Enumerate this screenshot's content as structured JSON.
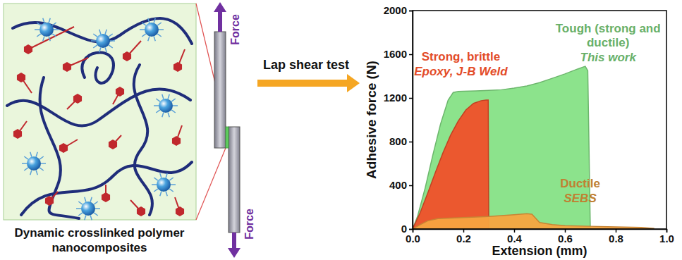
{
  "schematic": {
    "caption": "Dynamic crosslinked polymer nanocomposites",
    "forces": [
      "Force",
      "Force"
    ],
    "test": "Lap shear test"
  },
  "chart_data": {
    "type": "area",
    "x_label": "Extension (mm)",
    "y_label": "Adhesive force (N)",
    "xlim": [
      0,
      1
    ],
    "ylim": [
      0,
      2000
    ],
    "xticks": [
      {
        "value": 0,
        "label": "0.0"
      },
      0.2,
      0.4,
      0.6,
      0.8,
      {
        "value": 1,
        "label": "1.0"
      }
    ],
    "yticks": [
      0,
      400,
      800,
      1200,
      1600,
      2000
    ],
    "series": [
      {
        "name": "Tough (strong and ductile)",
        "sample": "This work",
        "color": "#86e286",
        "x": [
          0,
          0.02,
          0.05,
          0.08,
          0.11,
          0.14,
          0.16,
          0.18,
          0.2,
          0.25,
          0.3,
          0.35,
          0.4,
          0.45,
          0.5,
          0.55,
          0.6,
          0.65,
          0.68,
          0.69,
          0.7
        ],
        "values": [
          0,
          120,
          380,
          680,
          960,
          1180,
          1250,
          1260,
          1262,
          1265,
          1270,
          1275,
          1290,
          1310,
          1340,
          1380,
          1420,
          1465,
          1490,
          1450,
          0
        ]
      },
      {
        "name": "Strong, brittle",
        "sample": "Epoxy, J-B Weld",
        "color": "#f0502a",
        "x": [
          0,
          0.03,
          0.06,
          0.09,
          0.12,
          0.15,
          0.18,
          0.21,
          0.24,
          0.27,
          0.29,
          0.298,
          0.3
        ],
        "values": [
          0,
          150,
          330,
          520,
          700,
          860,
          990,
          1090,
          1150,
          1175,
          1180,
          1180,
          0
        ]
      },
      {
        "name": "Ductile",
        "sample": "SEBS",
        "color": "#f7a440",
        "x": [
          0,
          0.03,
          0.06,
          0.1,
          0.15,
          0.2,
          0.3,
          0.4,
          0.45,
          0.47,
          0.5,
          0.55,
          0.6,
          0.7,
          0.8,
          0.9,
          0.95
        ],
        "values": [
          0,
          40,
          75,
          95,
          100,
          105,
          115,
          130,
          140,
          135,
          60,
          40,
          30,
          25,
          20,
          15,
          5
        ]
      }
    ]
  }
}
